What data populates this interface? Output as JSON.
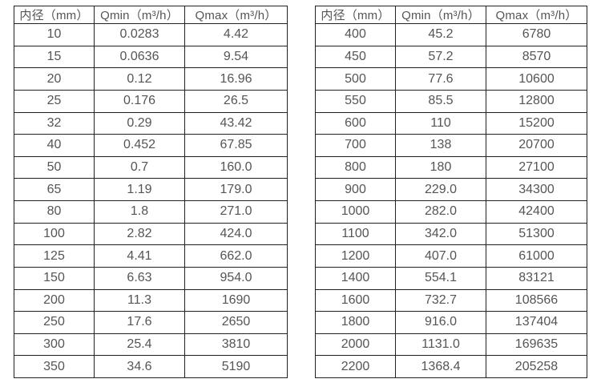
{
  "page": {
    "background": "#ffffff",
    "border_color": "#222222",
    "text_color": "#555555"
  },
  "left_table": {
    "headers": [
      "内径（mm）",
      "Qmin（m³/h）",
      "Qmax（m³/h）"
    ],
    "rows": [
      [
        "10",
        "0.0283",
        "4.42"
      ],
      [
        "15",
        "0.0636",
        "9.54"
      ],
      [
        "20",
        "0.12",
        "16.96"
      ],
      [
        "25",
        "0.176",
        "26.5"
      ],
      [
        "32",
        "0.29",
        "43.42"
      ],
      [
        "40",
        "0.452",
        "67.85"
      ],
      [
        "50",
        "0.7",
        "160.0"
      ],
      [
        "65",
        "1.19",
        "179.0"
      ],
      [
        "80",
        "1.8",
        "271.0"
      ],
      [
        "100",
        "2.82",
        "424.0"
      ],
      [
        "125",
        "4.41",
        "662.0"
      ],
      [
        "150",
        "6.63",
        "954.0"
      ],
      [
        "200",
        "11.3",
        "1690"
      ],
      [
        "250",
        "17.6",
        "2650"
      ],
      [
        "300",
        "25.4",
        "3810"
      ],
      [
        "350",
        "34.6",
        "5190"
      ]
    ]
  },
  "right_table": {
    "headers": [
      "内径（mm）",
      "Qmin（m³/h）",
      "Qmax（m³/h）"
    ],
    "rows": [
      [
        "400",
        "45.2",
        "6780"
      ],
      [
        "450",
        "57.2",
        "8570"
      ],
      [
        "500",
        "77.6",
        "10600"
      ],
      [
        "550",
        "85.5",
        "12800"
      ],
      [
        "600",
        "110",
        "15200"
      ],
      [
        "700",
        "138",
        "20700"
      ],
      [
        "800",
        "180",
        "27100"
      ],
      [
        "900",
        "229.0",
        "34300"
      ],
      [
        "1000",
        "282.0",
        "42400"
      ],
      [
        "1100",
        "342.0",
        "51300"
      ],
      [
        "1200",
        "407.0",
        "61000"
      ],
      [
        "1400",
        "554.1",
        "83121"
      ],
      [
        "1600",
        "732.7",
        "108566"
      ],
      [
        "1800",
        "916.0",
        "137404"
      ],
      [
        "2000",
        "1131.0",
        "169635"
      ],
      [
        "2200",
        "1368.4",
        "205258"
      ]
    ]
  }
}
